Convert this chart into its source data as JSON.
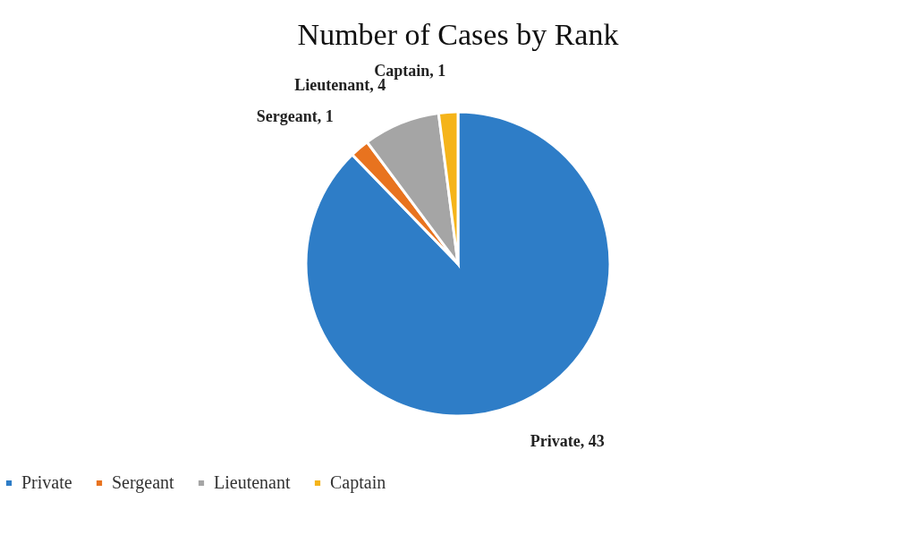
{
  "chart_data": {
    "type": "pie",
    "title": "Number of Cases by Rank",
    "categories": [
      "Private",
      "Sergeant",
      "Lieutenant",
      "Captain"
    ],
    "values": [
      43,
      1,
      4,
      1
    ],
    "colors": [
      "#2e7dc7",
      "#e8731f",
      "#a5a5a5",
      "#f5b41a"
    ],
    "value_labels": [
      "Private, 43",
      "Sergeant, 1",
      "Lieutenant, 4",
      "Captain, 1"
    ],
    "legend": "bottom"
  }
}
